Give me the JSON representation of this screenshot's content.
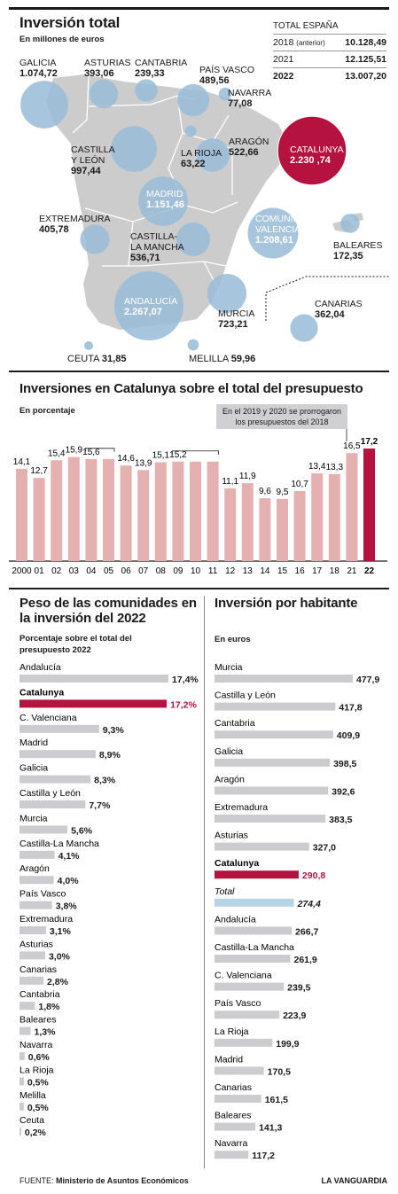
{
  "colors": {
    "accent": "#b5123f",
    "bar": "#e5b0b0",
    "grey_bar": "#cbcbd0",
    "total_bar": "#b9d3e6",
    "bubble": "#98bcd7",
    "bubble_dark": "#6e95b1",
    "map_bg": "#cccccc"
  },
  "map": {
    "title": "Inversión total",
    "subtitle": "En millones de euros",
    "totals_header": "TOTAL ESPAÑA",
    "totals": [
      {
        "year": "2018",
        "note": "(anterior)",
        "value": "10.128,49"
      },
      {
        "year": "2021",
        "note": "",
        "value": "12.125,51"
      },
      {
        "year": "2022",
        "note": "",
        "value": "13.007,20"
      }
    ],
    "regions": [
      {
        "name": "GALICIA",
        "value": "1.074,72"
      },
      {
        "name": "ASTURIAS",
        "value": "393,06"
      },
      {
        "name": "CANTABRIA",
        "value": "239,33"
      },
      {
        "name": "PAÍS VASCO",
        "value": "489,56"
      },
      {
        "name": "NAVARRA",
        "value": "77,08"
      },
      {
        "name": "CASTILLA Y LEÓN",
        "value": "997,44"
      },
      {
        "name": "LA RIOJA",
        "value": "63,22"
      },
      {
        "name": "ARAGÓN",
        "value": "522,66"
      },
      {
        "name": "CATALUNYA",
        "value": "2.230 ,74"
      },
      {
        "name": "MADRID",
        "value": "1.151,46"
      },
      {
        "name": "EXTREMADURA",
        "value": "405,78"
      },
      {
        "name": "CASTILLA-LA MANCHA",
        "value": "536,71"
      },
      {
        "name": "COMUNIDAD VALENCIANA",
        "value": "1.208,61"
      },
      {
        "name": "BALEARES",
        "value": "172,35"
      },
      {
        "name": "ANDALUCÍA",
        "value": "2.267,07"
      },
      {
        "name": "MURCIA",
        "value": "723,21"
      },
      {
        "name": "CANARIAS",
        "value": "362,04"
      },
      {
        "name": "CEUTA",
        "value": "31,85"
      },
      {
        "name": "MELILLA",
        "value": "59,96"
      }
    ]
  },
  "chart_data": [
    {
      "type": "bar",
      "title": "Inversiones en Catalunya sobre el total del presupuesto",
      "subtitle": "En porcentaje",
      "annotation": "En el 2019 y 2020 se prorrogaron los presupuestos del 2018",
      "categories": [
        "2000",
        "01",
        "02",
        "03",
        "04",
        "05",
        "06",
        "07",
        "08",
        "09",
        "10",
        "11",
        "12",
        "13",
        "14",
        "15",
        "16",
        "17",
        "18",
        "21",
        "22"
      ],
      "values": [
        14.1,
        12.7,
        15.4,
        15.9,
        15.6,
        15.6,
        14.6,
        13.9,
        15.1,
        15.2,
        15.2,
        15.2,
        11.1,
        11.9,
        9.6,
        9.5,
        10.7,
        13.4,
        13.3,
        16.5,
        17.2
      ],
      "labels": [
        "14,1",
        "12,7",
        "15,4",
        "15,9",
        "15,6",
        "",
        "14,6",
        "13,9",
        "15,1",
        "15,2",
        "",
        "",
        "11,1",
        "11,9",
        "9,6",
        "9,5",
        "10,7",
        "13,4",
        "13,3",
        "16,5",
        "17,2"
      ],
      "ylim": [
        0,
        17.2
      ],
      "highlight": "22"
    },
    {
      "type": "bar",
      "orientation": "horizontal",
      "title": "Peso de las comunidades en la inversión del 2022",
      "subtitle": "Porcentaje sobre el total del presupuesto 2022",
      "categories": [
        "Andalucía",
        "Catalunya",
        "C. Valenciana",
        "Madrid",
        "Galicia",
        "Castilla y León",
        "Murcia",
        "Castilla-La Mancha",
        "Aragón",
        "País Vasco",
        "Extremadura",
        "Asturias",
        "Canarias",
        "Cantabria",
        "Baleares",
        "Navarra",
        "La Rioja",
        "Melilla",
        "Ceuta"
      ],
      "values": [
        17.4,
        17.2,
        9.3,
        8.9,
        8.3,
        7.7,
        5.6,
        4.1,
        4.0,
        3.8,
        3.1,
        3.0,
        2.8,
        1.8,
        1.3,
        0.6,
        0.5,
        0.5,
        0.2
      ],
      "labels": [
        "17,4%",
        "17,2%",
        "9,3%",
        "8,9%",
        "8,3%",
        "7,7%",
        "5,6%",
        "4,1%",
        "4,0%",
        "3,8%",
        "3,1%",
        "3,0%",
        "2,8%",
        "1,8%",
        "1,3%",
        "0,6%",
        "0,5%",
        "0,5%",
        "0,2%"
      ],
      "highlight": "Catalunya"
    },
    {
      "type": "bar",
      "orientation": "horizontal",
      "title": "Inversión por habitante",
      "subtitle": "En euros",
      "categories": [
        "Murcia",
        "Castilla y León",
        "Cantabria",
        "Galicia",
        "Aragón",
        "Extremadura",
        "Asturias",
        "Catalunya",
        "Total",
        "Andalucía",
        "Castilla-La Mancha",
        "C. Valenciana",
        "País Vasco",
        "La Rioja",
        "Madrid",
        "Canarias",
        "Baleares",
        "Navarra"
      ],
      "values": [
        477.9,
        417.8,
        409.9,
        398.5,
        392.6,
        383.5,
        327.0,
        290.8,
        274.4,
        266.7,
        261.9,
        239.5,
        223.9,
        199.9,
        170.5,
        161.5,
        141.3,
        117.2
      ],
      "labels": [
        "477,9",
        "417,8",
        "409,9",
        "398,5",
        "392,6",
        "383,5",
        "327,0",
        "290,8",
        "274,4",
        "266,7",
        "261,9",
        "239,5",
        "223,9",
        "199,9",
        "170,5",
        "161,5",
        "141,3",
        "117,2"
      ],
      "highlight": "Catalunya",
      "total": "Total"
    }
  ],
  "footer": {
    "source_label": "FUENTE:",
    "source": "Ministerio de Asuntos Económicos",
    "brand": "LA VANGUARDIA"
  }
}
